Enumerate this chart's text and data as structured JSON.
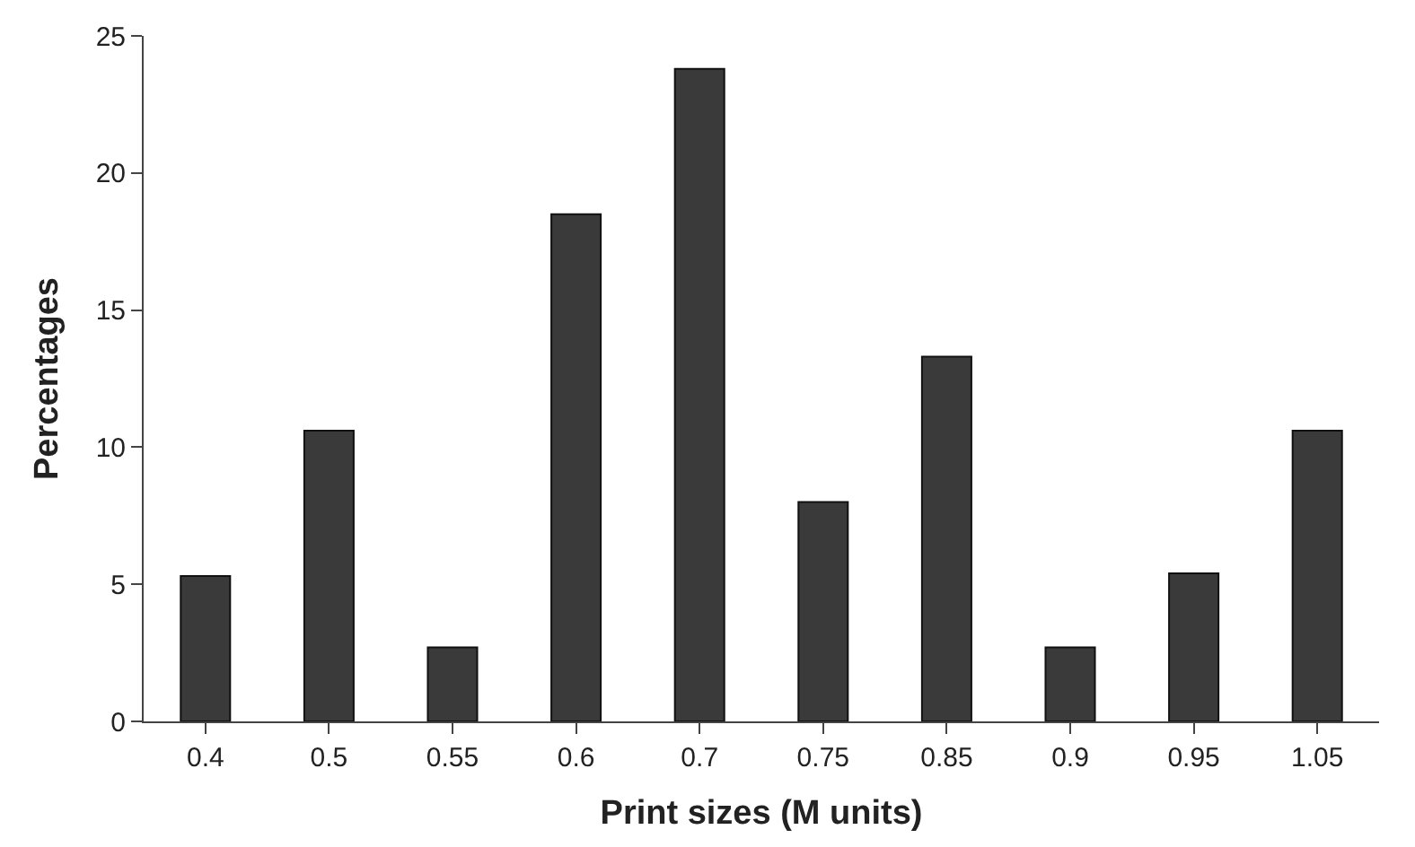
{
  "chart_data": {
    "type": "bar",
    "xlabel": "Print sizes (M units)",
    "ylabel": "Percentages",
    "categories": [
      "0.4",
      "0.5",
      "0.55",
      "0.6",
      "0.7",
      "0.75",
      "0.85",
      "0.9",
      "0.95",
      "1.05"
    ],
    "values": [
      5.3,
      10.6,
      2.7,
      18.5,
      23.8,
      8.0,
      13.3,
      2.7,
      5.4,
      10.6
    ],
    "color": "#3a3a3a",
    "ylim": [
      0,
      25
    ],
    "yticks": [
      0,
      5,
      10,
      15,
      20,
      25
    ]
  }
}
